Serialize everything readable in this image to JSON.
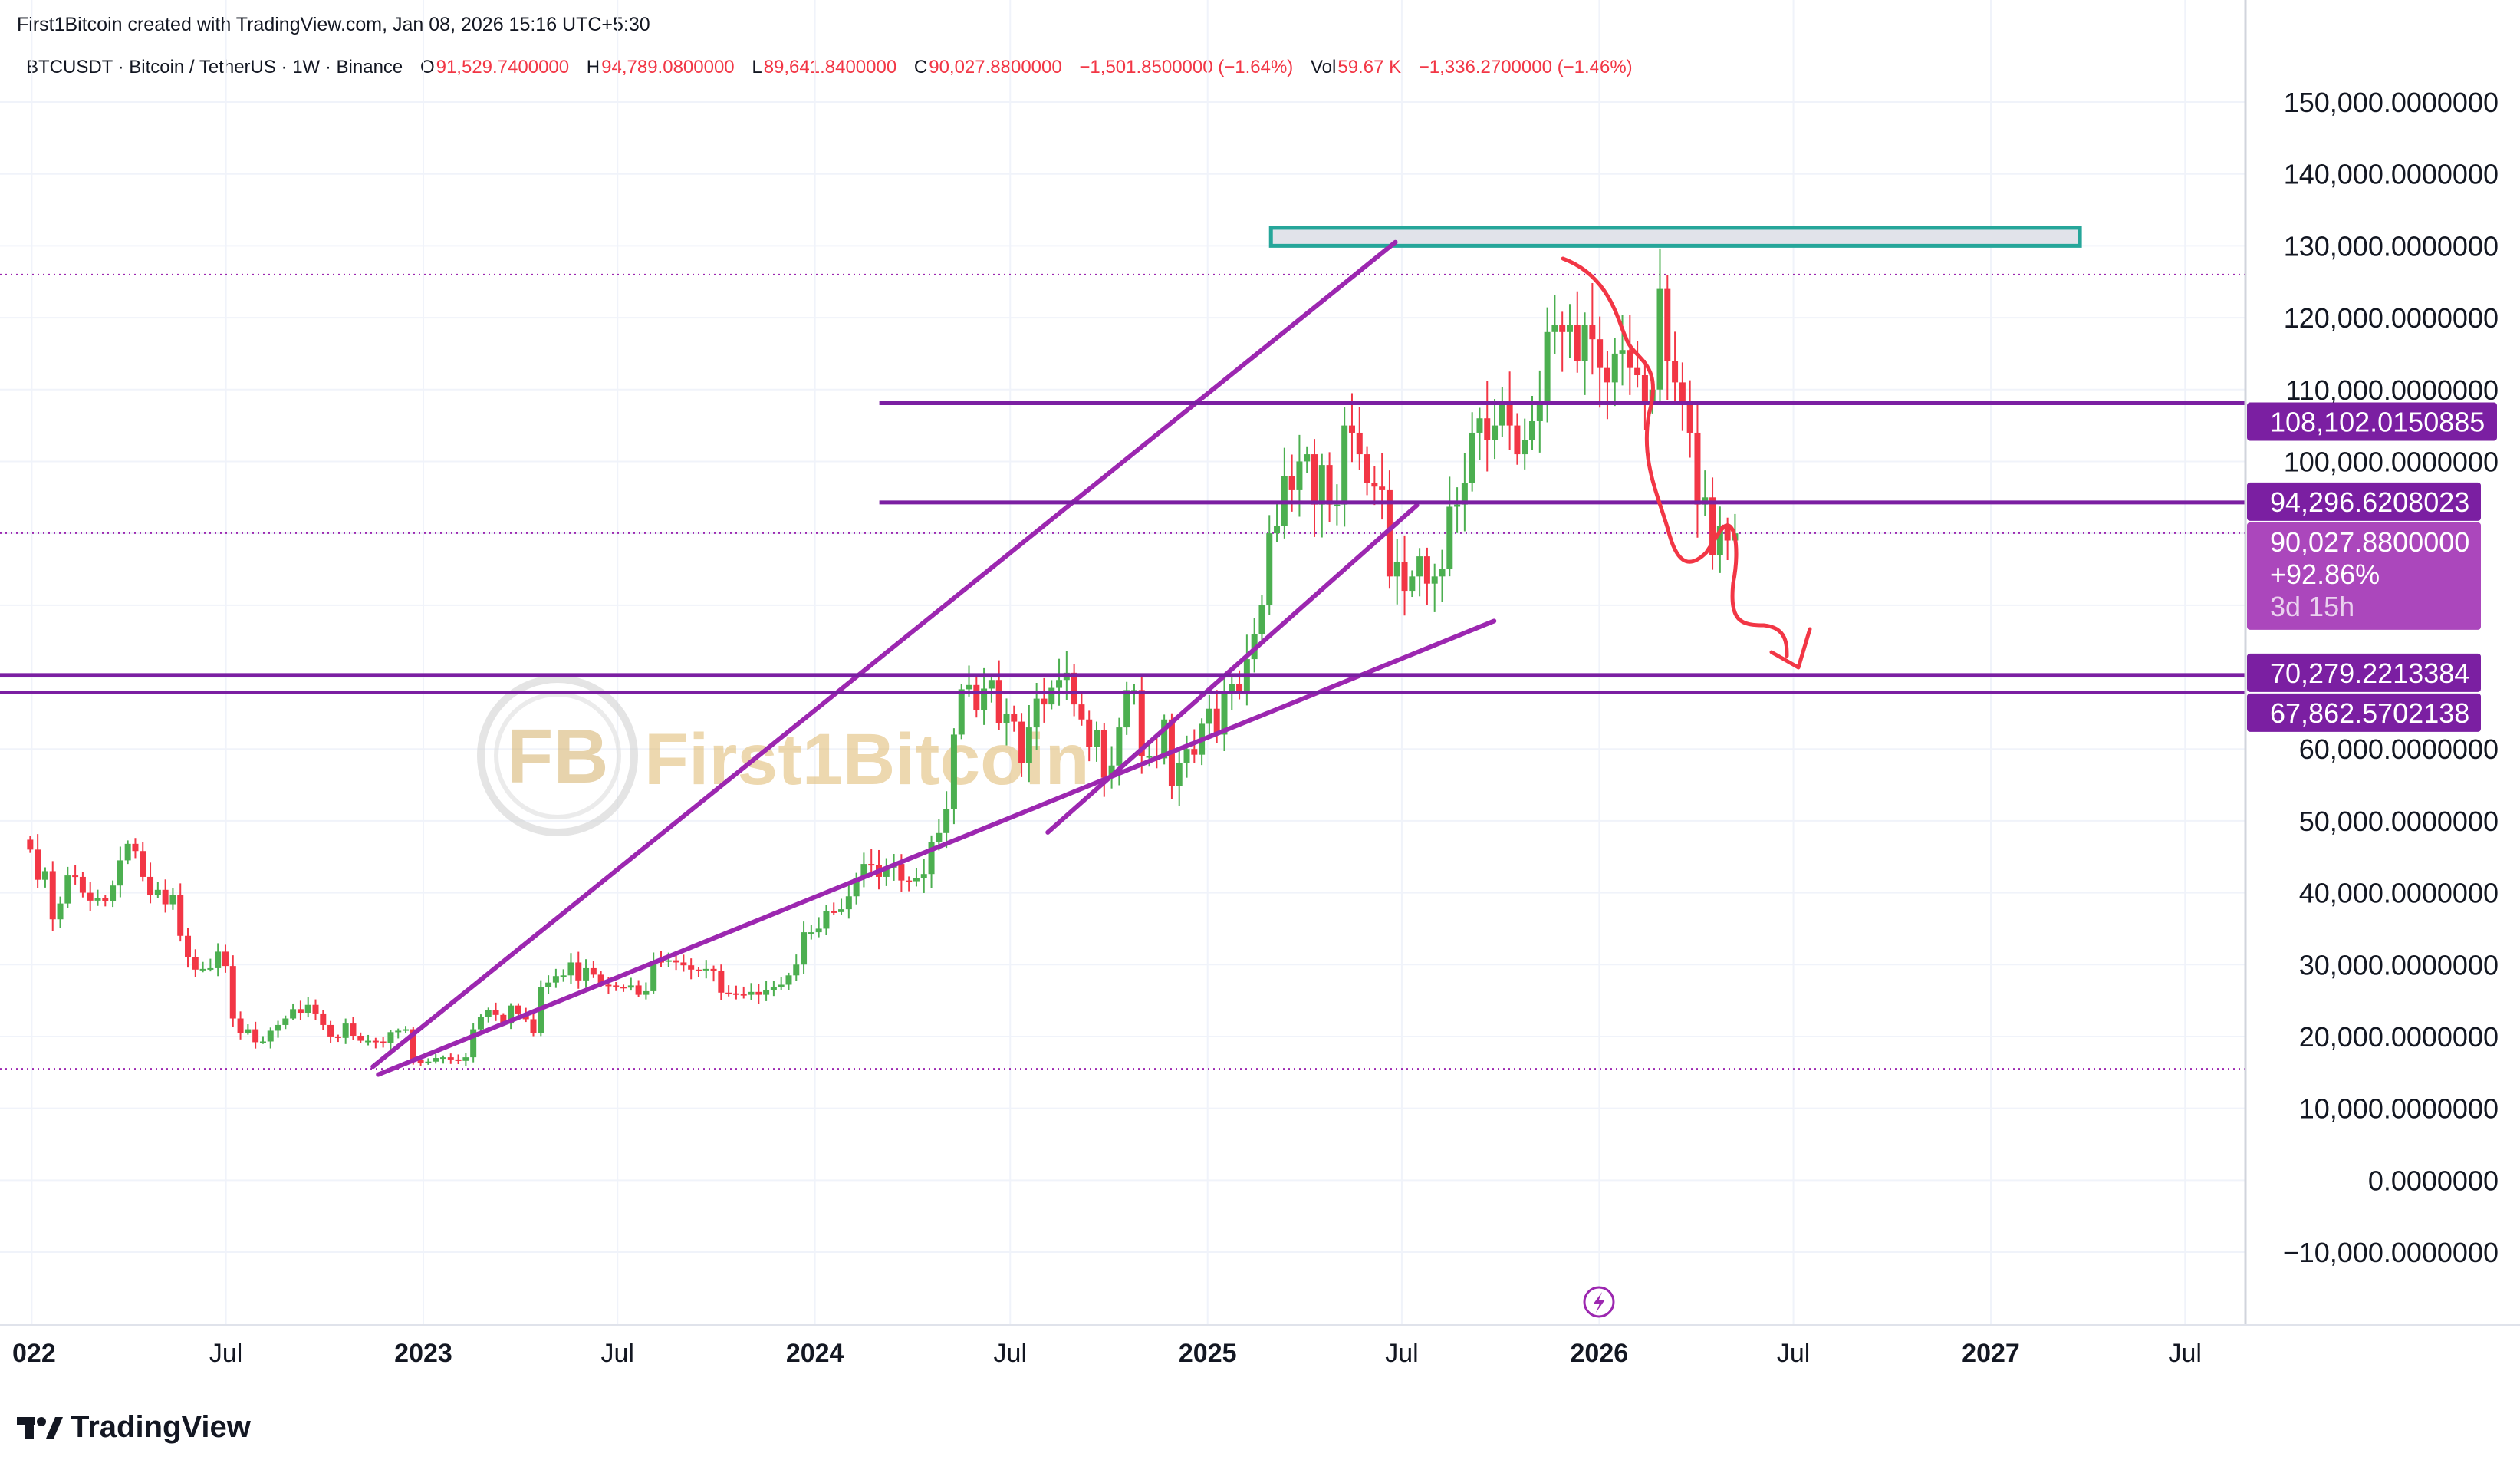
{
  "credit": "First1Bitcoin created with TradingView.com, Jan 08, 2026 15:16 UTC+5:30",
  "legend": {
    "symbol": "BTCUSDT · Bitcoin / TetherUS · 1W · Binance",
    "o_label": "O",
    "o": "91,529.7400000",
    "h_label": "H",
    "h": "94,789.0800000",
    "l_label": "L",
    "l": "89,641.8400000",
    "c_label": "C",
    "c": "90,027.8800000",
    "change": "−1,501.8500000 (−1.64%)",
    "vol_label": "Vol",
    "vol": "59.67 K",
    "vol_change": "−1,336.2700000 (−1.46%)"
  },
  "watermark": "First1Bitcoin",
  "brand": "TradingView",
  "colors": {
    "up": "#4caf50",
    "down": "#f23645",
    "purple": "#7b1fa2",
    "purple_line": "#9c27b0",
    "current_label": "#ab47bc",
    "rect_border": "#26a69a",
    "arrow": "#f23645"
  },
  "chart_data": {
    "type": "candlestick",
    "symbol": "BTCUSDT",
    "interval": "1W",
    "start": "2021-12-27",
    "closes": [
      46,
      41.8,
      43,
      36.3,
      38.5,
      42.4,
      42.2,
      40,
      38.9,
      39.3,
      38.8,
      41,
      44.5,
      46.8,
      45.8,
      42.2,
      39.7,
      40.4,
      38.4,
      39.7,
      34,
      31,
      29.3,
      29.4,
      29.5,
      31.8,
      29.8,
      22.5,
      20.5,
      21,
      19.2,
      19.3,
      20.8,
      21.6,
      22.5,
      23.8,
      23.3,
      24.4,
      23.2,
      21.6,
      20,
      19.8,
      21.8,
      20.1,
      19.4,
      19.4,
      19.3,
      19.1,
      20.6,
      20.8,
      21,
      16.8,
      16.3,
      16.5,
      17,
      17.1,
      16.8,
      16.6,
      17.1,
      21,
      22.7,
      23.7,
      23,
      21.8,
      24.3,
      23.2,
      22.4,
      20.5,
      26.9,
      27.5,
      28.4,
      28.5,
      30.3,
      27.8,
      29.5,
      28.6,
      27.2,
      27.1,
      26.9,
      26.8,
      27.1,
      25.8,
      26.3,
      30.5,
      30.4,
      30.6,
      30.3,
      29.9,
      29.3,
      29.2,
      29.4,
      29.1,
      26.1,
      26,
      25.9,
      25.8,
      26.2,
      25.8,
      26.5,
      26.9,
      27.2,
      28.5,
      30,
      34.5,
      34.5,
      35,
      37.4,
      37.3,
      37.7,
      39.5,
      42,
      44,
      43.8,
      42.2,
      43.5,
      44,
      41.7,
      41.6,
      42,
      42.6,
      47,
      48.3,
      51.6,
      62,
      68.3,
      68.9,
      65.4,
      68.4,
      69.6,
      63.6,
      64.9,
      63.8,
      58,
      63,
      67,
      66.2,
      68.5,
      69.6,
      70.6,
      66.2,
      64.1,
      60.3,
      62.6,
      56,
      57.7,
      63,
      68.2,
      68.2,
      59,
      59,
      58.7,
      64.1,
      54.8,
      58.1,
      60,
      59.2,
      63.5,
      65.6,
      62,
      67.8,
      69,
      68,
      72.5,
      76,
      80,
      90,
      91,
      98,
      96,
      100,
      101,
      94,
      99.5,
      94,
      94,
      105,
      104,
      101,
      97,
      96.5,
      96,
      84,
      86,
      82,
      84,
      86.8,
      83,
      84,
      85,
      93.7,
      94,
      97,
      104,
      106,
      103,
      105,
      108,
      105,
      101,
      103,
      105.6,
      108,
      118,
      119,
      118,
      119,
      114,
      119,
      117,
      113,
      111,
      115,
      115.5,
      113,
      112,
      108,
      110,
      124,
      114,
      111,
      108,
      104,
      94,
      95,
      87,
      91,
      89,
      90
    ],
    "close_unit": "thousand USDT",
    "ylim": [
      -15000,
      155000
    ],
    "y_ticks": [
      "150,000.0000000",
      "140,000.0000000",
      "130,000.0000000",
      "120,000.0000000",
      "110,000.0000000",
      "100,000.0000000",
      "60,000.0000000",
      "50,000.0000000",
      "40,000.0000000",
      "30,000.0000000",
      "20,000.0000000",
      "10,000.0000000",
      "0.0000000",
      "−10,000.0000000"
    ],
    "y_tick_values": [
      150000,
      140000,
      130000,
      120000,
      110000,
      100000,
      60000,
      50000,
      40000,
      30000,
      20000,
      10000,
      0,
      -10000
    ],
    "x_ticks": [
      {
        "label": "022",
        "date": "2022-01-01"
      },
      {
        "label": "Jul",
        "date": "2022-07-01"
      },
      {
        "label": "2023",
        "date": "2023-01-01"
      },
      {
        "label": "Jul",
        "date": "2023-07-01"
      },
      {
        "label": "2024",
        "date": "2024-01-01"
      },
      {
        "label": "Jul",
        "date": "2024-07-01"
      },
      {
        "label": "2025",
        "date": "2025-01-01"
      },
      {
        "label": "Jul",
        "date": "2025-07-01"
      },
      {
        "label": "2026",
        "date": "2026-01-01"
      },
      {
        "label": "Jul",
        "date": "2026-07-01"
      },
      {
        "label": "2027",
        "date": "2027-01-01"
      },
      {
        "label": "Jul",
        "date": "2027-07-01"
      }
    ],
    "grid": true,
    "horizontal_levels": [
      {
        "price": 108102.0150885,
        "label": "108,102.0150885",
        "from": "2024-03-01"
      },
      {
        "price": 94296.6208023,
        "label": "94,296.6208023",
        "from": "2024-03-01"
      },
      {
        "price": 70279.2213384,
        "label": "70,279.2213384",
        "from": "2021-12-01"
      },
      {
        "price": 67862.5702138,
        "label": "67,862.5702138",
        "from": "2021-12-01"
      }
    ],
    "current_price": {
      "price": 90027.88,
      "label": "90,027.8800000",
      "change": "+92.86%",
      "countdown": "3d 15h"
    },
    "dotted_levels": [
      126000,
      90027.88,
      15500
    ],
    "trend_lines": [
      {
        "from": [
          "2022-11-15",
          15800
        ],
        "to": [
          "2025-06-25",
          130500
        ]
      },
      {
        "from": [
          "2022-11-20",
          14700
        ],
        "to": [
          "2025-09-25",
          77800
        ]
      },
      {
        "from": [
          "2024-08-05",
          48400
        ],
        "to": [
          "2025-07-15",
          93900
        ]
      }
    ],
    "rectangle": {
      "from": [
        "2025-03-01",
        132500
      ],
      "to": [
        "2027-03-25",
        130000
      ]
    }
  }
}
